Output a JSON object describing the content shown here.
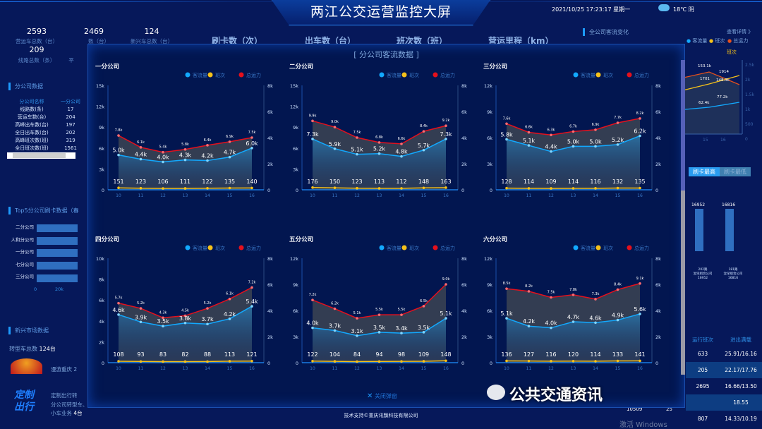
{
  "header": {
    "title": "两江公交运营监控大屏",
    "datetime": "2021/10/25 17:23:17 星期一",
    "weather": "18℃ 阴"
  },
  "stats": [
    {
      "value": "2593",
      "label": "营运车总数（台）"
    },
    {
      "value": "2469",
      "label": "数（台）"
    },
    {
      "value": "124",
      "label": "新兴车总数（台）"
    },
    {
      "value": "209",
      "label": "线路总数（条）"
    }
  ],
  "stat_partial": "平",
  "menu": [
    "刷卡数（次）",
    "出车数（台）",
    "班次数（班）",
    "营运里程（km）"
  ],
  "left": {
    "branch_title": "分公司数据",
    "branch_header": [
      "分公司名称",
      "一分公司"
    ],
    "branch_rows": [
      [
        "线路数(条)",
        "17"
      ],
      [
        "营运车数(台)",
        "204"
      ],
      [
        "高峰出车数(台)",
        "197"
      ],
      [
        "全日出车数(台)",
        "202"
      ],
      [
        "高峰班次数(班)",
        "319"
      ],
      [
        "全日班次数(班)",
        "1561"
      ]
    ],
    "top5_title": "Top5分公司刷卡数据（春",
    "top5": [
      "二分公司",
      "人和分公司",
      "一分公司",
      "七分公司",
      "三分公司"
    ],
    "top5_ticks": [
      "0",
      "20k"
    ],
    "market_title": "新兴市场数据",
    "market_total_label": "转型车总数",
    "market_total": "124台",
    "tour_label": "漫游重庆 2",
    "custom_lines": [
      "定制出行转",
      "分公司转型车、",
      "小车业务"
    ],
    "custom_count": "4台"
  },
  "right": {
    "title": "全公司客流变化",
    "detail": "查看详情 》",
    "legend": [
      "客流量",
      "班次",
      "总运力"
    ],
    "axis_label": "班次",
    "ticks": [
      "2.5k",
      "2k",
      "1.5k",
      "1k",
      "500",
      "0"
    ],
    "labels": [
      "153.1k",
      "1701",
      "1914",
      "148.3k",
      "62.4k",
      "77.2k"
    ],
    "x": [
      "15",
      "16"
    ],
    "tabs": [
      "刷卡最高",
      "刷卡最低"
    ],
    "bars": [
      {
        "value": "16952",
        "name": "202路",
        "company": "汝早组合公司"
      },
      {
        "value": "16816",
        "name": "181路",
        "company": "汝早组合公司"
      }
    ],
    "table_header": [
      "运行班次",
      "进出满载"
    ],
    "table_rows": [
      [
        "633",
        "25.91/16.16"
      ],
      [
        "205",
        "22.17/17.76"
      ],
      [
        "2695",
        "16.66/13.50"
      ],
      [
        "",
        "18.55"
      ],
      [
        "807",
        "14.33/10.19"
      ]
    ],
    "partial_cells": [
      "10509",
      "25"
    ]
  },
  "modal": {
    "title": "[ 分公司客流数据 ]",
    "close": "关闭弹窗"
  },
  "footer": "技术支持©重庆讯飘科技有限公司",
  "watermark": {
    "text": "公共交通资讯",
    "windows": "激活 Windows"
  },
  "colors": {
    "passenger": "#12a9ff",
    "trips": "#f5c11a",
    "capacity": "#e5101c"
  },
  "chart_data": [
    {
      "type": "line",
      "title": "一分公司",
      "legend": [
        "客流量",
        "班次",
        "总运力"
      ],
      "categories": [
        "10",
        "11",
        "12",
        "13",
        "14",
        "15",
        "16"
      ],
      "ylim": [
        0,
        15000
      ],
      "yticks": [
        "0",
        "3k",
        "6k",
        "9k",
        "12k",
        "15k"
      ],
      "y2lim": [
        0,
        8000
      ],
      "y2ticks": [
        "0",
        "2k",
        "4k",
        "6k",
        "8k"
      ],
      "series": [
        {
          "name": "客流量",
          "values": [
            5000,
            4400,
            4000,
            4300,
            4200,
            4700,
            6000
          ],
          "labels": [
            "5.0k",
            "4.4k",
            "4.0k",
            "4.3k",
            "4.2k",
            "4.7k",
            "6.0k"
          ]
        },
        {
          "name": "班次",
          "values": [
            151,
            123,
            106,
            111,
            122,
            135,
            140
          ]
        },
        {
          "name": "总运力",
          "values": [
            7800,
            6100,
            5400,
            5800,
            6400,
            6900,
            7500
          ],
          "labels": [
            "7.8k",
            "6.1k",
            "5.4k",
            "5.8k",
            "6.4k",
            "6.9k",
            "7.5k"
          ]
        }
      ]
    },
    {
      "type": "line",
      "title": "二分公司",
      "legend": [
        "客流量",
        "班次",
        "总运力"
      ],
      "categories": [
        "10",
        "11",
        "12",
        "13",
        "14",
        "15",
        "16"
      ],
      "ylim": [
        0,
        15000
      ],
      "yticks": [
        "0",
        "3k",
        "6k",
        "9k",
        "12k",
        "15k"
      ],
      "y2lim": [
        0,
        8000
      ],
      "y2ticks": [
        "0",
        "2k",
        "4k",
        "6k",
        "8k"
      ],
      "series": [
        {
          "name": "客流量",
          "values": [
            7300,
            5900,
            5100,
            5200,
            4800,
            5700,
            7300
          ],
          "labels": [
            "7.3k",
            "5.9k",
            "5.1k",
            "5.2k",
            "4.8k",
            "5.7k",
            "7.3k"
          ]
        },
        {
          "name": "班次",
          "values": [
            176,
            150,
            123,
            113,
            112,
            148,
            163
          ]
        },
        {
          "name": "总运力",
          "values": [
            9900,
            9000,
            7500,
            6800,
            6600,
            8400,
            9200
          ],
          "labels": [
            "9.9k",
            "9.0k",
            "7.5k",
            "6.8k",
            "6.6k",
            "8.4k",
            "9.2k"
          ]
        }
      ]
    },
    {
      "type": "line",
      "title": "三分公司",
      "legend": [
        "客流量",
        "班次",
        "总运力"
      ],
      "categories": [
        "10",
        "11",
        "12",
        "13",
        "14",
        "15",
        "16"
      ],
      "ylim": [
        0,
        12000
      ],
      "yticks": [
        "0",
        "3k",
        "6k",
        "9k",
        "12k"
      ],
      "y2lim": [
        0,
        8000
      ],
      "y2ticks": [
        "0",
        "2k",
        "4k",
        "6k",
        "8k"
      ],
      "series": [
        {
          "name": "客流量",
          "values": [
            5800,
            5100,
            4400,
            5000,
            5000,
            5200,
            6200
          ],
          "labels": [
            "5.8k",
            "5.1k",
            "4.4k",
            "5.0k",
            "5.0k",
            "5.2k",
            "6.2k"
          ]
        },
        {
          "name": "班次",
          "values": [
            128,
            114,
            109,
            114,
            116,
            132,
            135
          ]
        },
        {
          "name": "总运力",
          "values": [
            7600,
            6600,
            6300,
            6700,
            6900,
            7700,
            8200
          ],
          "labels": [
            "7.6k",
            "6.6k",
            "6.3k",
            "6.7k",
            "6.9k",
            "7.7k",
            "8.2k"
          ]
        }
      ]
    },
    {
      "type": "line",
      "title": "四分公司",
      "legend": [
        "客流量",
        "班次",
        "总运力"
      ],
      "categories": [
        "10",
        "11",
        "12",
        "13",
        "14",
        "15",
        "16"
      ],
      "ylim": [
        0,
        10000
      ],
      "yticks": [
        "0",
        "2k",
        "4k",
        "6k",
        "8k",
        "10k"
      ],
      "y2lim": [
        0,
        8000
      ],
      "y2ticks": [
        "0",
        "2k",
        "4k",
        "6k",
        "8k"
      ],
      "series": [
        {
          "name": "客流量",
          "values": [
            4600,
            3900,
            3500,
            3800,
            3700,
            4200,
            5400
          ],
          "labels": [
            "4.6k",
            "3.9k",
            "3.5k",
            "3.8k",
            "3.7k",
            "4.2k",
            "5.4k"
          ]
        },
        {
          "name": "班次",
          "values": [
            108,
            93,
            83,
            82,
            88,
            113,
            121
          ]
        },
        {
          "name": "总运力",
          "values": [
            5700,
            5200,
            4300,
            4500,
            5200,
            6100,
            7200
          ],
          "labels": [
            "5.7k",
            "5.2k",
            "4.3k",
            "4.5k",
            "5.2k",
            "6.1k",
            "7.2k"
          ]
        }
      ]
    },
    {
      "type": "line",
      "title": "五分公司",
      "legend": [
        "客流量",
        "班次",
        "总运力"
      ],
      "categories": [
        "10",
        "11",
        "12",
        "13",
        "14",
        "15",
        "16"
      ],
      "ylim": [
        0,
        12000
      ],
      "yticks": [
        "0",
        "3k",
        "6k",
        "9k",
        "12k"
      ],
      "y2lim": [
        0,
        8000
      ],
      "y2ticks": [
        "0",
        "2k",
        "4k",
        "6k",
        "8k"
      ],
      "series": [
        {
          "name": "客流量",
          "values": [
            4000,
            3700,
            3100,
            3500,
            3400,
            3500,
            5100
          ],
          "labels": [
            "4.0k",
            "3.7k",
            "3.1k",
            "3.5k",
            "3.4k",
            "3.5k",
            "5.1k"
          ]
        },
        {
          "name": "班次",
          "values": [
            122,
            104,
            84,
            94,
            98,
            109,
            148
          ]
        },
        {
          "name": "总运力",
          "values": [
            7200,
            6200,
            5100,
            5500,
            5500,
            6500,
            9000
          ],
          "labels": [
            "7.2k",
            "6.2k",
            "5.1k",
            "5.5k",
            "5.5k",
            "6.5k",
            "9.0k"
          ]
        }
      ]
    },
    {
      "type": "line",
      "title": "六分公司",
      "legend": [
        "客流量",
        "班次",
        "总运力"
      ],
      "categories": [
        "10",
        "11",
        "12",
        "13",
        "14",
        "15",
        "16"
      ],
      "ylim": [
        0,
        12000
      ],
      "yticks": [
        "0",
        "3k",
        "6k",
        "9k",
        "12k"
      ],
      "y2lim": [
        0,
        8000
      ],
      "y2ticks": [
        "0",
        "2k",
        "4k",
        "6k",
        "8k"
      ],
      "series": [
        {
          "name": "客流量",
          "values": [
            5100,
            4200,
            4000,
            4700,
            4600,
            4900,
            5600
          ],
          "labels": [
            "5.1k",
            "4.2k",
            "4.0k",
            "4.7k",
            "4.6k",
            "4.9k",
            "5.6k"
          ]
        },
        {
          "name": "班次",
          "values": [
            136,
            127,
            116,
            120,
            114,
            133,
            141
          ]
        },
        {
          "name": "总运力",
          "values": [
            8500,
            8200,
            7500,
            7800,
            7300,
            8400,
            9100
          ],
          "labels": [
            "8.5k",
            "8.2k",
            "7.5k",
            "7.8k",
            "7.3k",
            "8.4k",
            "9.1k"
          ]
        }
      ]
    }
  ]
}
